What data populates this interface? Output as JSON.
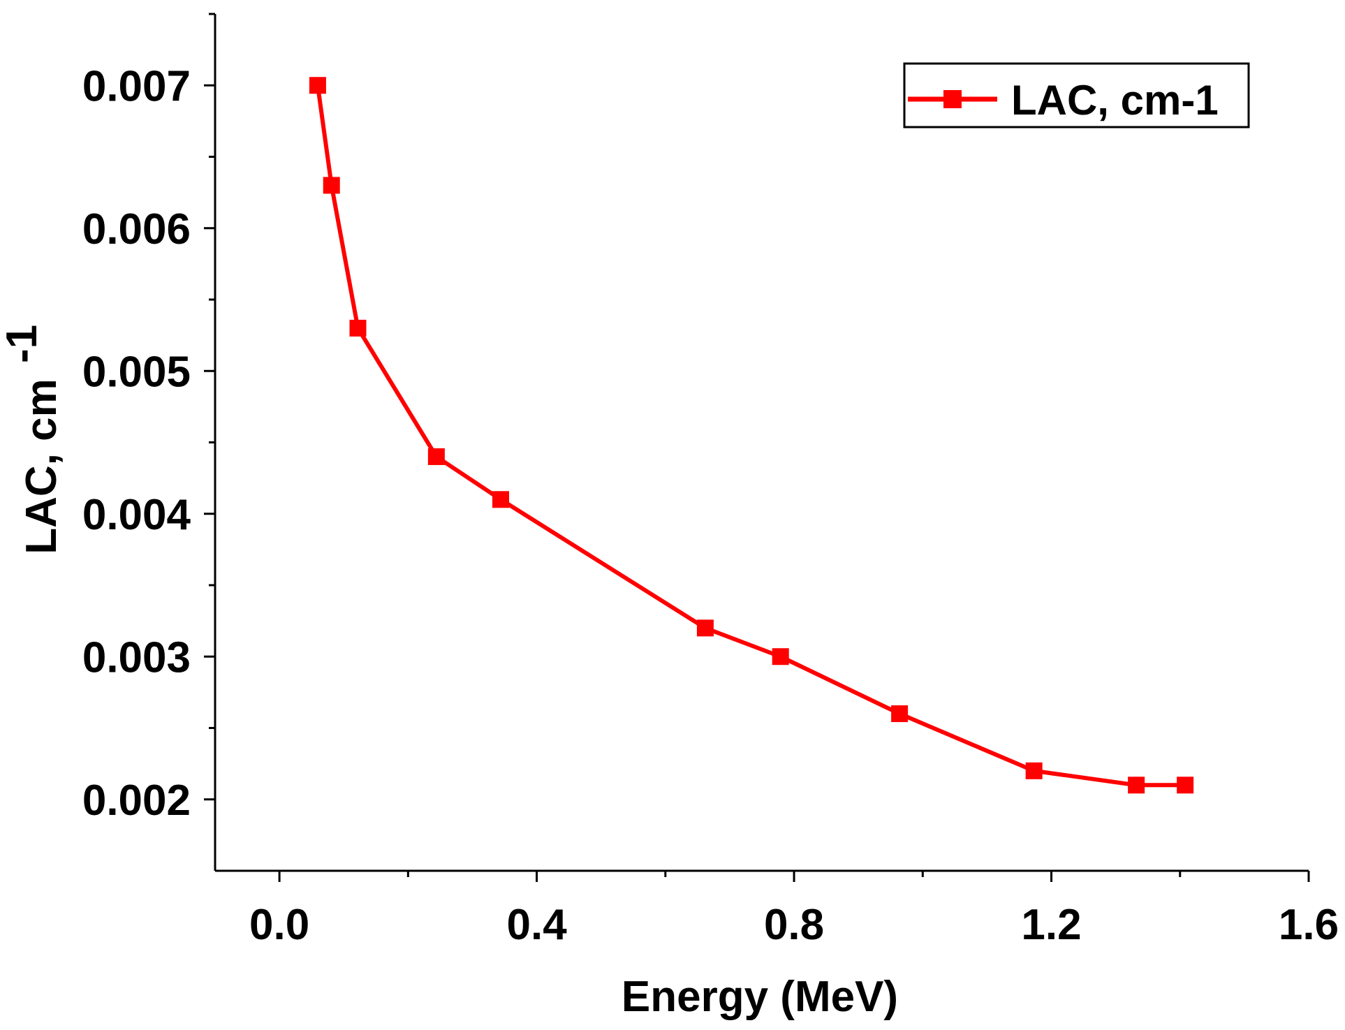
{
  "chart_data": {
    "type": "line",
    "title": "",
    "xlabel": "Energy (MeV)",
    "ylabel": "LAC, cm",
    "ylabel_superscript": "-1",
    "xlim": [
      -0.1,
      1.6
    ],
    "ylim": [
      0.0015,
      0.0075
    ],
    "x_ticks": [
      "0.0",
      "0.4",
      "0.8",
      "1.2",
      "1.6"
    ],
    "y_ticks": [
      "0.002",
      "0.003",
      "0.004",
      "0.005",
      "0.006",
      "0.007"
    ],
    "legend_position": "top-right",
    "series": [
      {
        "name": "LAC, cm-1",
        "color": "#ff0000",
        "marker": "square",
        "x": [
          0.0595,
          0.081,
          0.122,
          0.244,
          0.344,
          0.662,
          0.779,
          0.964,
          1.173,
          1.332,
          1.408
        ],
        "y": [
          0.007,
          0.0063,
          0.0053,
          0.0044,
          0.0041,
          0.0032,
          0.003,
          0.0026,
          0.0022,
          0.0021,
          0.0021
        ]
      }
    ]
  }
}
